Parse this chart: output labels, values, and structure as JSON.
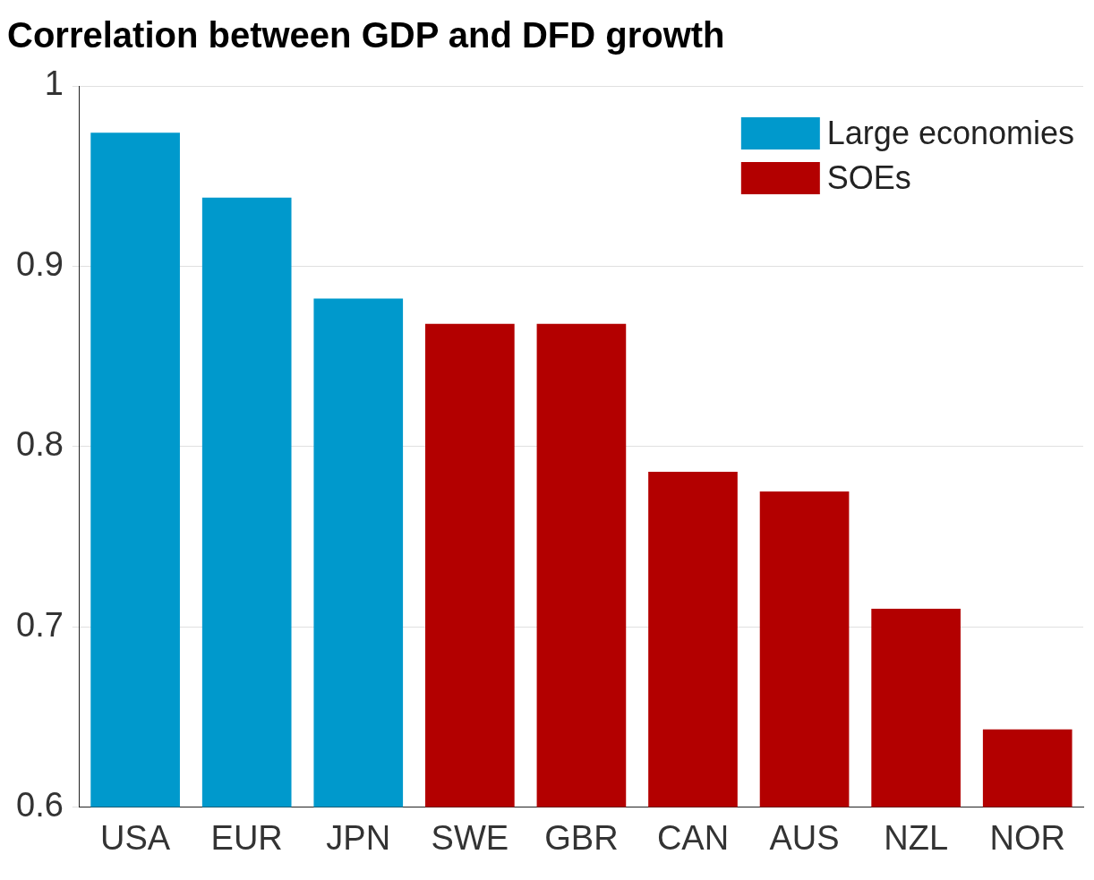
{
  "chart_data": {
    "type": "bar",
    "title": "Correlation between GDP and DFD growth",
    "categories": [
      "USA",
      "EUR",
      "JPN",
      "SWE",
      "GBR",
      "CAN",
      "AUS",
      "NZL",
      "NOR"
    ],
    "series": [
      {
        "name": "Large economies",
        "color": "#0099cc",
        "values": [
          0.974,
          0.938,
          0.882,
          null,
          null,
          null,
          null,
          null,
          null
        ]
      },
      {
        "name": "SOEs",
        "color": "#b30000",
        "values": [
          null,
          null,
          null,
          0.868,
          0.868,
          0.786,
          0.775,
          0.71,
          0.643
        ]
      }
    ],
    "ylim": [
      0.6,
      1
    ],
    "yticks": [
      0.6,
      0.7,
      0.8,
      0.9,
      1
    ],
    "grid": "y",
    "legend": "top right"
  }
}
